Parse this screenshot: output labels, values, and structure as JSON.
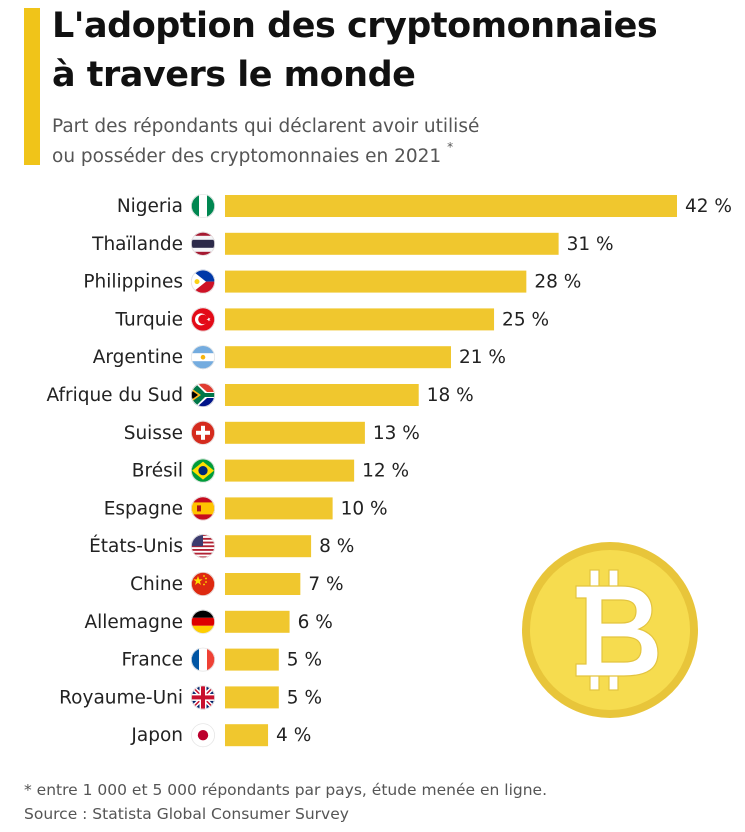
{
  "header": {
    "title": "L'adoption des cryptomonnaies\nà travers le monde",
    "subtitle": "Part des répondants qui déclarent avoir utilisé\nou posséder des cryptomonnaies en 2021",
    "subtitle_mark": "*"
  },
  "colors": {
    "accent": "#f0c419",
    "bar": "#f0c72e",
    "coin": "#f6dc4f",
    "coin_rim": "#e8c53a"
  },
  "chart_data": {
    "type": "bar",
    "orientation": "horizontal",
    "title": "",
    "xlabel": "",
    "ylabel": "",
    "unit": "%",
    "xlim": [
      0,
      42
    ],
    "grid": false,
    "categories": [
      "Nigeria",
      "Thaïlande",
      "Philippines",
      "Turquie",
      "Argentine",
      "Afrique du Sud",
      "Suisse",
      "Brésil",
      "Espagne",
      "États-Unis",
      "Chine",
      "Allemagne",
      "France",
      "Royaume-Uni",
      "Japon"
    ],
    "values": [
      42,
      31,
      28,
      25,
      21,
      18,
      13,
      12,
      10,
      8,
      7,
      6,
      5,
      5,
      4
    ],
    "value_labels": [
      "42 %",
      "31 %",
      "28 %",
      "25 %",
      "21 %",
      "18 %",
      "13 %",
      "12 %",
      "10 %",
      "8 %",
      "7 %",
      "6 %",
      "5 %",
      "5 %",
      "4 %"
    ],
    "flags": [
      "nigeria-flag-icon",
      "thailand-flag-icon",
      "philippines-flag-icon",
      "turkey-flag-icon",
      "argentina-flag-icon",
      "south-africa-flag-icon",
      "switzerland-flag-icon",
      "brazil-flag-icon",
      "spain-flag-icon",
      "usa-flag-icon",
      "china-flag-icon",
      "germany-flag-icon",
      "france-flag-icon",
      "uk-flag-icon",
      "japan-flag-icon"
    ]
  },
  "footer": {
    "footnote": "* entre 1 000 et 5 000 répondants par pays, étude menée en ligne.",
    "source": "Source : Statista Global Consumer Survey"
  },
  "decoration": {
    "coin_icon": "bitcoin-coin-icon"
  }
}
